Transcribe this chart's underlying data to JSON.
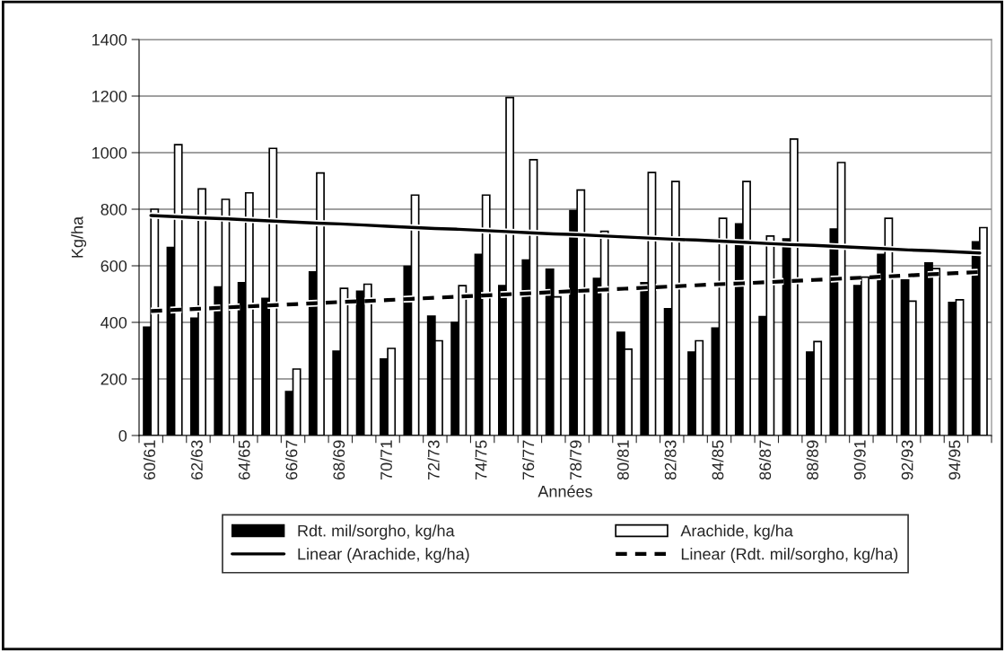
{
  "chart_data": {
    "type": "bar",
    "xlabel": "Années",
    "ylabel": "Kg/ha",
    "categories": [
      "60/61",
      null,
      "62/63",
      null,
      "64/65",
      null,
      "66/67",
      null,
      "68/69",
      null,
      "70/71",
      null,
      "72/73",
      null,
      "74/75",
      null,
      "76/77",
      null,
      "78/79",
      null,
      "80/81",
      null,
      "82/83",
      null,
      "84/85",
      null,
      "86/87",
      null,
      "88/89",
      null,
      "90/91",
      null,
      "92/93",
      null,
      "94/95",
      null
    ],
    "series": [
      {
        "name": "Rdt. mil/sorgho, kg/ha",
        "color": "#000000",
        "values": [
          383,
          665,
          415,
          525,
          540,
          485,
          155,
          578,
          298,
          510,
          270,
          598,
          422,
          400,
          640,
          530,
          620,
          588,
          795,
          555,
          365,
          540,
          448,
          295,
          380,
          748,
          420,
          695,
          295,
          730,
          530,
          640,
          550,
          610,
          470,
          685
        ]
      },
      {
        "name": "Arachide, kg/ha",
        "color": "#ffffff",
        "values": [
          800,
          1028,
          872,
          835,
          858,
          1015,
          235,
          928,
          520,
          535,
          308,
          850,
          335,
          530,
          850,
          1195,
          975,
          490,
          868,
          722,
          305,
          930,
          898,
          335,
          768,
          898,
          705,
          1048,
          332,
          965,
          560,
          768,
          475,
          590,
          480,
          735
        ]
      },
      {
        "name": "Linear (Arachide, kg/ha)",
        "type": "line",
        "color": "#000000",
        "line_style": "solid",
        "values": [
          778,
          774,
          770,
          767,
          763,
          759,
          755,
          751,
          748,
          744,
          740,
          736,
          732,
          729,
          725,
          721,
          717,
          713,
          710,
          706,
          702,
          698,
          694,
          691,
          687,
          683,
          679,
          675,
          672,
          668,
          664,
          660,
          656,
          653,
          649,
          645
        ]
      },
      {
        "name": "Linear (Rdt. mil/sorgho, kg/ha)",
        "type": "line",
        "color": "#000000",
        "line_style": "dashed",
        "values": [
          440,
          444,
          448,
          452,
          456,
          460,
          464,
          468,
          472,
          475,
          479,
          483,
          487,
          491,
          495,
          499,
          503,
          507,
          511,
          515,
          519,
          523,
          527,
          531,
          535,
          538,
          542,
          546,
          550,
          554,
          558,
          562,
          566,
          570,
          574,
          578
        ]
      }
    ],
    "ylim": [
      0,
      1400
    ],
    "yticks": [
      0,
      200,
      400,
      600,
      800,
      1000,
      1200,
      1400
    ],
    "grid": "y",
    "legend": "bottom",
    "marker": "none"
  }
}
